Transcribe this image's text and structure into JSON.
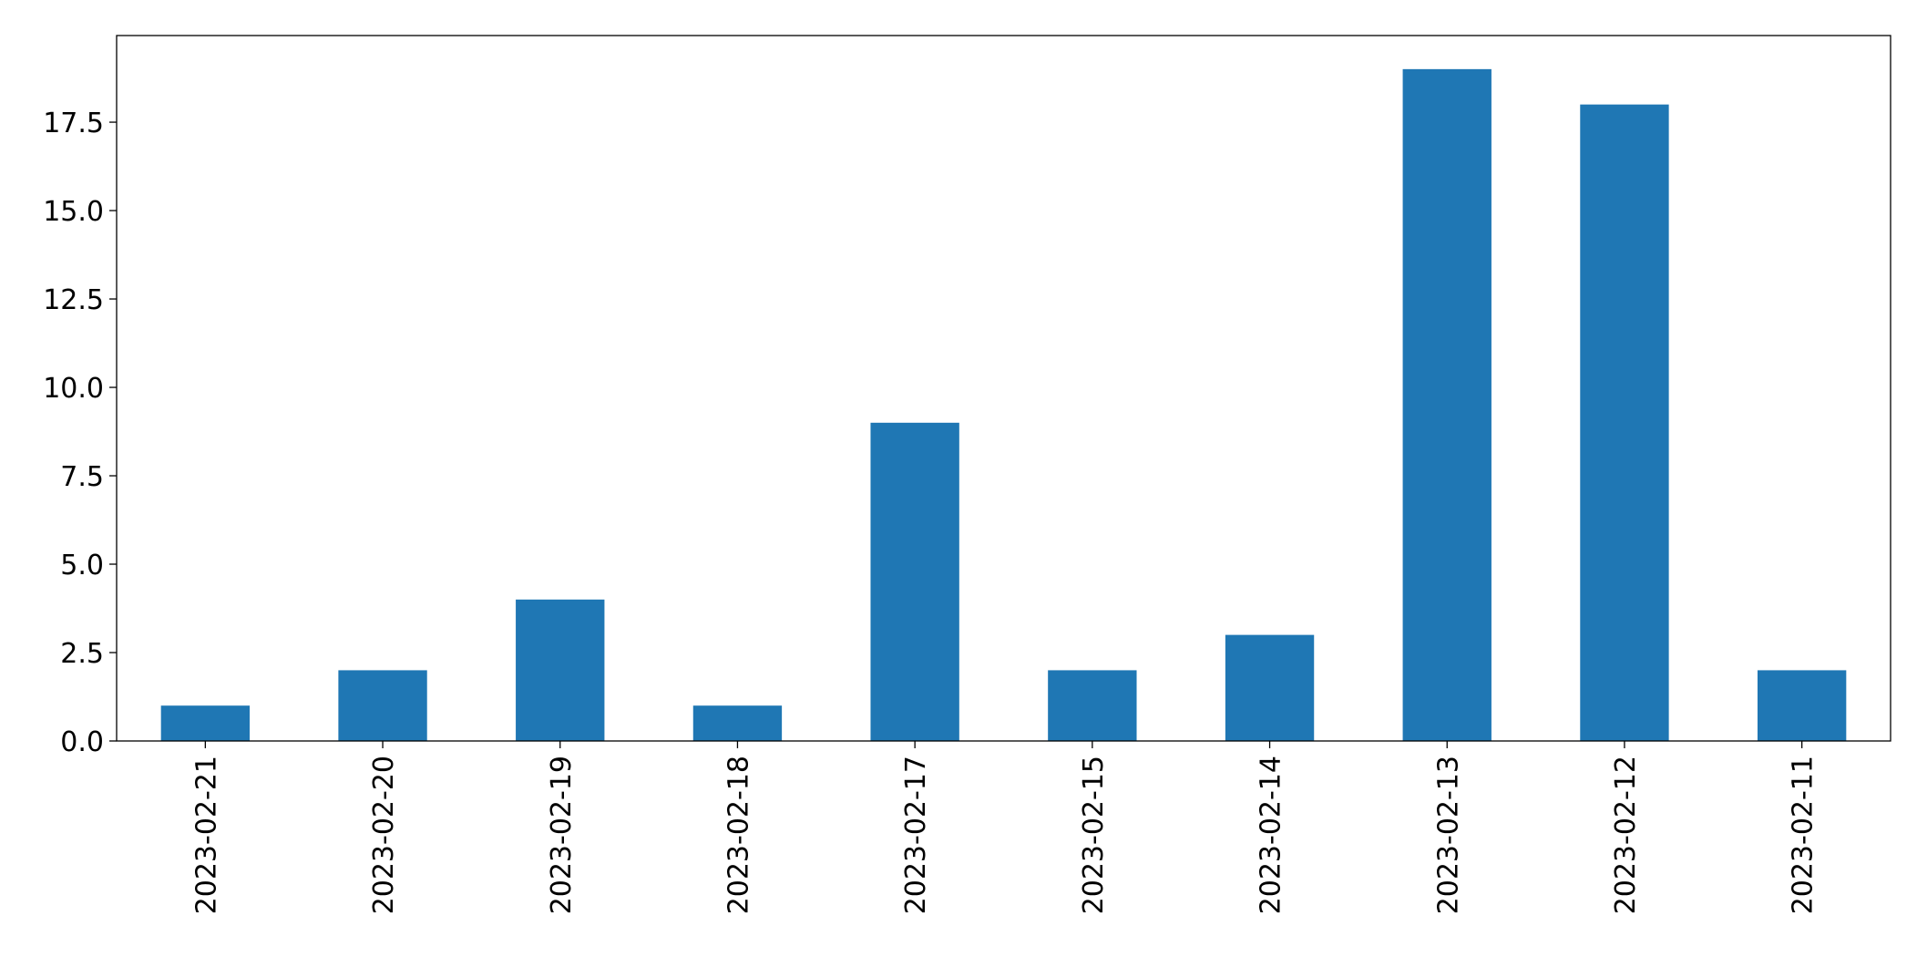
{
  "chart_data": {
    "type": "bar",
    "categories": [
      "2023-02-21",
      "2023-02-20",
      "2023-02-19",
      "2023-02-18",
      "2023-02-17",
      "2023-02-15",
      "2023-02-14",
      "2023-02-13",
      "2023-02-12",
      "2023-02-11"
    ],
    "values": [
      1,
      2,
      4,
      1,
      9,
      2,
      3,
      19,
      18,
      2
    ],
    "color": "#1f77b4",
    "ylim": [
      0,
      19.95
    ],
    "yticks": [
      {
        "value": 0,
        "label": "0.0"
      },
      2.5,
      {
        "value": 5,
        "label": "5.0"
      },
      7.5,
      {
        "value": 10,
        "label": "10.0"
      },
      12.5,
      {
        "value": 15,
        "label": "15.0"
      },
      17.5
    ],
    "grid": false
  }
}
